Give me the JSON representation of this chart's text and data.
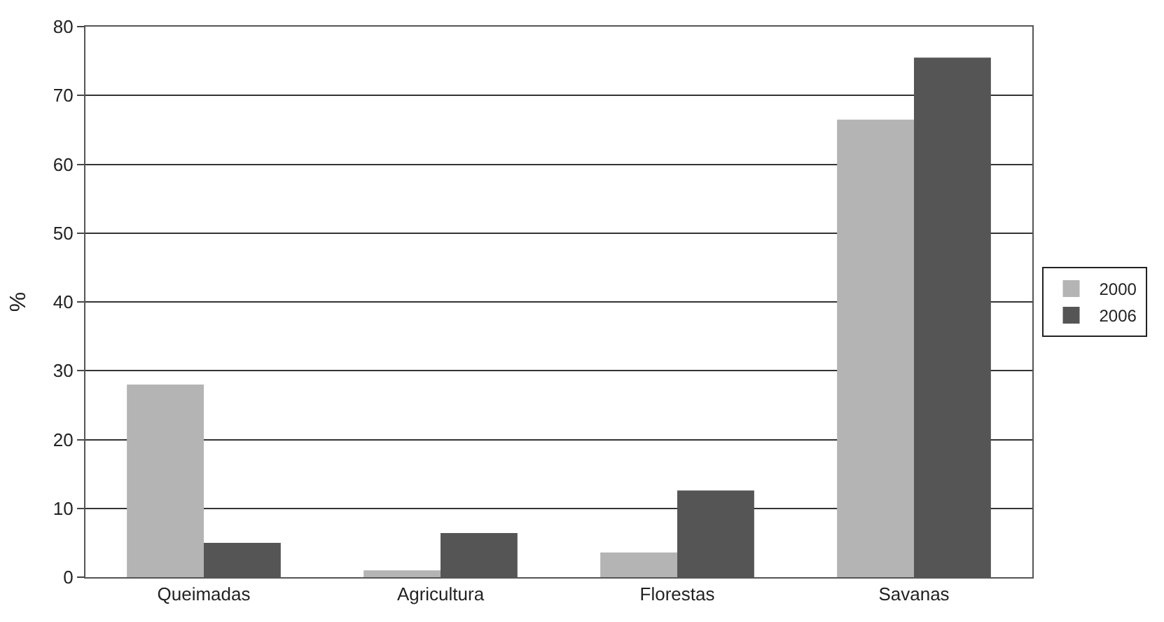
{
  "chart_data": {
    "type": "bar",
    "ylabel": "%",
    "categories": [
      "Queimadas",
      "Agricultura",
      "Florestas",
      "Savanas"
    ],
    "series": [
      {
        "name": "2000",
        "color": "#b4b4b4",
        "values": [
          28,
          1,
          3.6,
          66.5
        ]
      },
      {
        "name": "2006",
        "color": "#555555",
        "values": [
          5,
          6.4,
          12.6,
          75.5
        ]
      }
    ],
    "ylim": [
      0,
      80
    ],
    "yticks": [
      0,
      10,
      20,
      30,
      40,
      50,
      60,
      70,
      80
    ],
    "grid": "y",
    "legend": "right"
  }
}
